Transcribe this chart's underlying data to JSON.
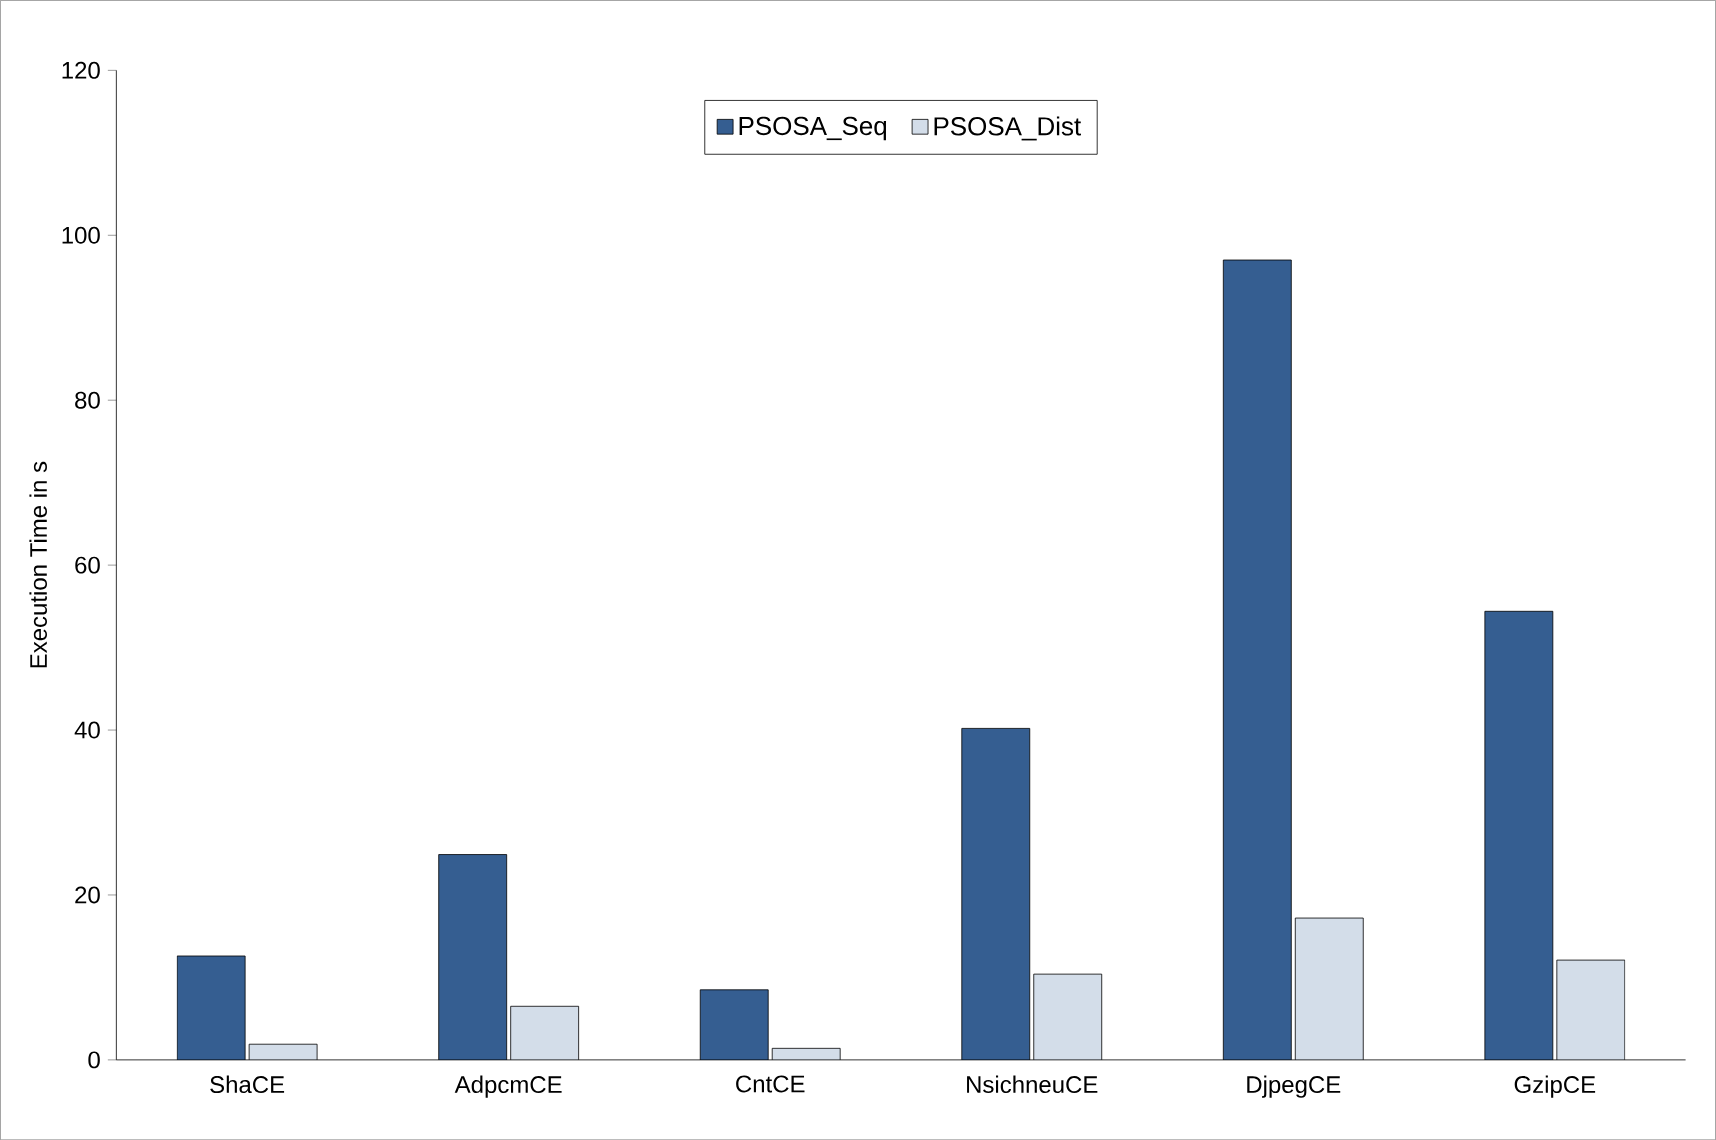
{
  "chart_data": {
    "type": "bar",
    "ylabel": "Execution Time in s",
    "categories": [
      "ShaCE",
      "AdpcmCE",
      "CntCE",
      "NsichneuCE",
      "DjpegCE",
      "GzipCE"
    ],
    "series": [
      {
        "name": "PSOSA_Seq",
        "color": "#355e91",
        "values": [
          12.6,
          24.9,
          8.5,
          40.2,
          97.0,
          54.4
        ]
      },
      {
        "name": "PSOSA_Dist",
        "color": "#d3dde9",
        "values": [
          1.9,
          6.5,
          1.4,
          10.4,
          17.2,
          12.1
        ]
      }
    ],
    "ylim": [
      0,
      120
    ],
    "yticks": [
      0,
      20,
      40,
      60,
      80,
      100,
      120
    ],
    "grid": false,
    "legend": "top"
  }
}
